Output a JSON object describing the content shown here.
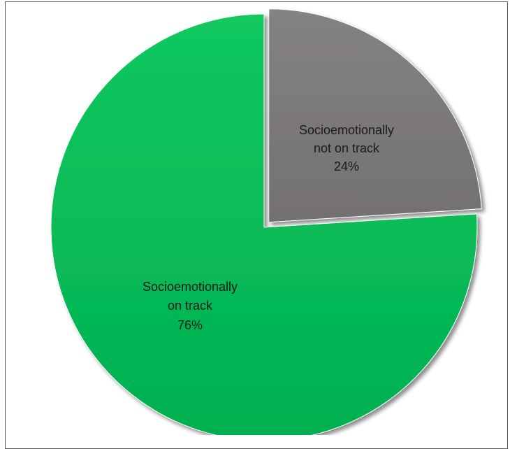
{
  "chart_data": {
    "type": "pie",
    "title": "",
    "slices": [
      {
        "label_lines": [
          "Socioemotionally",
          "not on track"
        ],
        "value": 24,
        "percent_label": "24%",
        "color": "#7f7f7f",
        "exploded": true
      },
      {
        "label_lines": [
          "Socioemotionally",
          "on track"
        ],
        "value": 76,
        "percent_label": "76%",
        "color": "#00b050",
        "exploded": false
      }
    ],
    "legend": "none",
    "start": "12 o'clock, clockwise"
  }
}
